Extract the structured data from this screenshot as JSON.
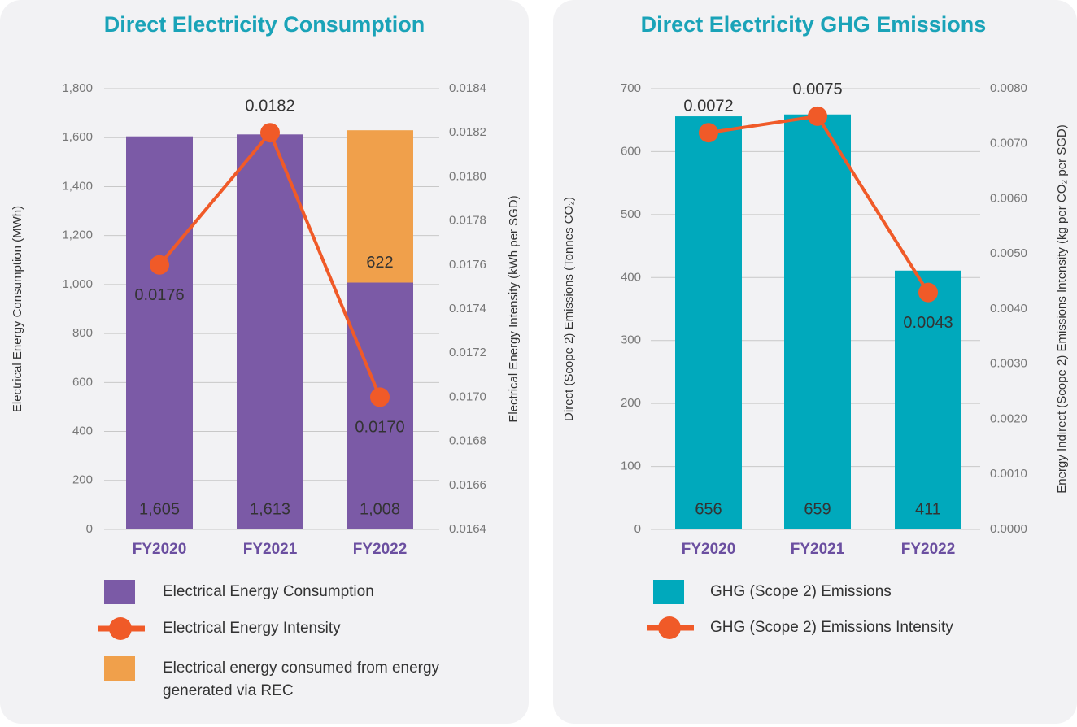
{
  "chart_data": [
    {
      "type": "bar",
      "title": "Direct Electricity Consumption",
      "ylabel": "Electrical Energy Consumption (MWh)",
      "y2label": "Electrical Energy Intensity (kWh per SGD)",
      "categories": [
        "FY2020",
        "FY2021",
        "FY2022"
      ],
      "series": [
        {
          "name": "Electrical Energy Consumption",
          "type": "bar",
          "color": "#7b5aa6",
          "values": [
            1605,
            1613,
            1008
          ],
          "value_labels": [
            "1,605",
            "1,613",
            "1,008"
          ]
        },
        {
          "name": "Electrical Energy Intensity",
          "type": "line",
          "axis": "y2",
          "color": "#f05a28",
          "values": [
            0.0176,
            0.0182,
            0.017
          ],
          "value_labels": [
            "0.0176",
            "0.0182",
            "0.0170"
          ]
        },
        {
          "name": "Electrical energy consumed from energy generated via REC",
          "type": "bar",
          "color": "#f0a04b",
          "values": [
            null,
            null,
            622
          ]
        }
      ],
      "ylim": [
        0,
        1800
      ],
      "yticks": [
        0,
        200,
        400,
        600,
        800,
        {
          "value": 1000,
          "label": "1,000"
        },
        {
          "value": 1200,
          "label": "1,200"
        },
        {
          "value": 1400,
          "label": "1,400"
        },
        {
          "value": 1600,
          "label": "1,600"
        },
        {
          "value": 1800,
          "label": "1,800"
        }
      ],
      "y2lim": [
        0.0164,
        0.0184
      ],
      "y2ticks": [
        0.0164,
        0.0166,
        0.0168,
        {
          "value": 0.017,
          "label": "0.0170"
        },
        0.0172,
        0.0174,
        0.0176,
        0.0178,
        {
          "value": 0.018,
          "label": "0.0180"
        },
        0.0182,
        0.0184
      ],
      "grid": true
    },
    {
      "type": "bar",
      "title": "Direct Electricity GHG Emissions",
      "ylabel": "Direct (Scope 2) Emissions (Tonnes CO₂)",
      "y2label": "Energy Indirect (Scope 2) Emissions Intensity (kg per CO₂ per SGD)",
      "categories": [
        "FY2020",
        "FY2021",
        "FY2022"
      ],
      "series": [
        {
          "name": "GHG (Scope 2) Emissions",
          "type": "bar",
          "color": "#00a9bc",
          "values": [
            656,
            659,
            411
          ]
        },
        {
          "name": "GHG (Scope 2) Emissions Intensity",
          "type": "line",
          "axis": "y2",
          "color": "#f05a28",
          "values": [
            0.0072,
            0.0075,
            0.0043
          ]
        }
      ],
      "ylim": [
        0,
        700
      ],
      "yticks": [
        0,
        100,
        200,
        300,
        400,
        500,
        600,
        700
      ],
      "y2lim": [
        0,
        0.008
      ],
      "y2ticks": [
        {
          "value": 0,
          "label": "0.0000"
        },
        {
          "value": 0.001,
          "label": "0.0010"
        },
        {
          "value": 0.002,
          "label": "0.0020"
        },
        {
          "value": 0.003,
          "label": "0.0030"
        },
        {
          "value": 0.004,
          "label": "0.0040"
        },
        {
          "value": 0.005,
          "label": "0.0050"
        },
        {
          "value": 0.006,
          "label": "0.0060"
        },
        {
          "value": 0.007,
          "label": "0.0070"
        },
        {
          "value": 0.008,
          "label": "0.0080"
        }
      ],
      "grid": true
    }
  ]
}
